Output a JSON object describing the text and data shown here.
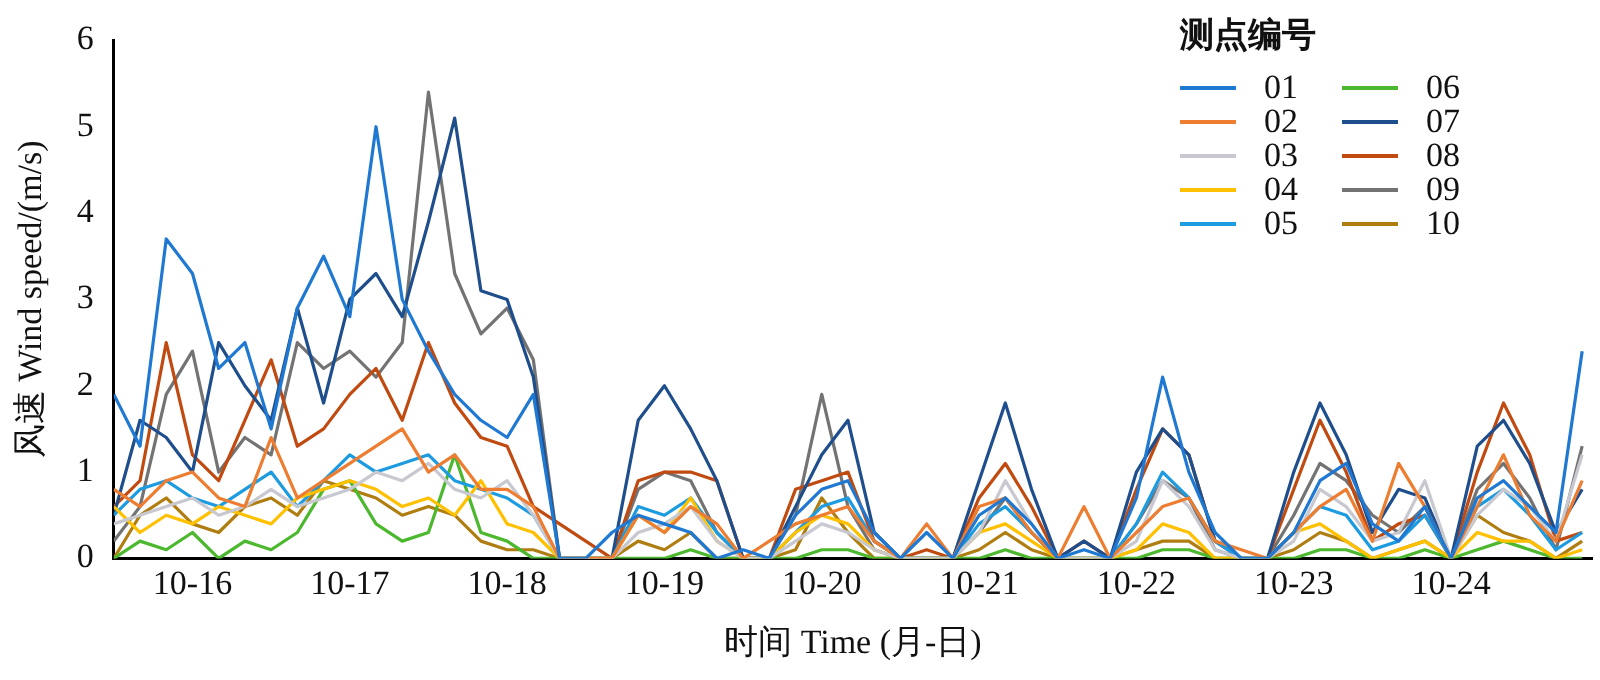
{
  "chart_data": {
    "type": "line",
    "xlabel": "时间 Time (月-日)",
    "ylabel": "风速 Wind speed/(m/s)",
    "legend_title": "测点编号",
    "legend": "top right",
    "marker": "none",
    "xlim": [
      "--10-15T12:00",
      "--10-24T21:30"
    ],
    "xticks": [
      {
        "value": "--10-16",
        "label": "10-16"
      },
      {
        "value": "--10-17",
        "label": "10-17"
      },
      {
        "value": "--10-18",
        "label": "10-18"
      },
      {
        "value": "--10-19",
        "label": "10-19"
      },
      {
        "value": "--10-20",
        "label": "10-20"
      },
      {
        "value": "--10-21",
        "label": "10-21"
      },
      {
        "value": "--10-22",
        "label": "10-22"
      },
      {
        "value": "--10-23",
        "label": "10-23"
      },
      {
        "value": "--10-24",
        "label": "10-24"
      }
    ],
    "ylim": [
      0,
      6
    ],
    "yticks": [
      0,
      1,
      2,
      3,
      4,
      5,
      6
    ],
    "x": [
      "--10-15T12:00",
      "--10-15T16:00",
      "--10-15T20:00",
      "--10-16T00:00",
      "--10-16T04:00",
      "--10-16T08:00",
      "--10-16T12:00",
      "--10-16T16:00",
      "--10-16T20:00",
      "--10-17T00:00",
      "--10-17T04:00",
      "--10-17T08:00",
      "--10-17T12:00",
      "--10-17T16:00",
      "--10-17T20:00",
      "--10-18T00:00",
      "--10-18T04:00",
      "--10-18T08:00",
      "--10-18T12:00",
      "--10-18T16:00",
      "--10-18T20:00",
      "--10-19T00:00",
      "--10-19T04:00",
      "--10-19T08:00",
      "--10-19T12:00",
      "--10-19T16:00",
      "--10-19T20:00",
      "--10-20T00:00",
      "--10-20T04:00",
      "--10-20T08:00",
      "--10-20T12:00",
      "--10-20T16:00",
      "--10-20T20:00",
      "--10-21T00:00",
      "--10-21T04:00",
      "--10-21T08:00",
      "--10-21T12:00",
      "--10-21T16:00",
      "--10-21T20:00",
      "--10-22T00:00",
      "--10-22T04:00",
      "--10-22T08:00",
      "--10-22T12:00",
      "--10-22T16:00",
      "--10-22T20:00",
      "--10-23T00:00",
      "--10-23T04:00",
      "--10-23T08:00",
      "--10-23T12:00",
      "--10-23T16:00",
      "--10-23T20:00",
      "--10-24T00:00",
      "--10-24T04:00",
      "--10-24T08:00",
      "--10-24T12:00",
      "--10-24T16:00",
      "--10-24T20:00"
    ],
    "series": [
      {
        "name": "01",
        "color": "#1f78d1",
        "values": [
          1.9,
          1.3,
          3.7,
          3.3,
          2.2,
          2.5,
          1.5,
          2.9,
          3.5,
          2.8,
          5.0,
          3.0,
          2.4,
          1.9,
          1.6,
          1.4,
          1.9,
          0,
          0,
          0.3,
          0.5,
          0.4,
          0.3,
          0,
          0.1,
          0,
          0.5,
          0.8,
          0.9,
          0.3,
          0,
          0.3,
          0,
          0.5,
          0.7,
          0.4,
          0,
          0.1,
          0,
          0.7,
          2.1,
          1.0,
          0.3,
          0,
          0,
          0.3,
          0.9,
          1.1,
          0.4,
          0.2,
          0.6,
          0,
          0.7,
          0.9,
          0.6,
          0.3,
          2.4
        ]
      },
      {
        "name": "02",
        "color": "#ed7d31",
        "values": [
          0.8,
          0.6,
          0.9,
          1.0,
          0.7,
          0.6,
          1.4,
          0.7,
          0.9,
          1.1,
          1.3,
          1.5,
          1.0,
          1.2,
          0.8,
          0.8,
          0.6,
          0,
          0,
          0,
          0.5,
          0.3,
          0.6,
          0.4,
          0,
          0.2,
          0.4,
          0.5,
          0.6,
          0.2,
          0,
          0.4,
          0,
          0.6,
          0.7,
          0.3,
          0,
          0.6,
          0,
          0.3,
          0.6,
          0.7,
          0.2,
          0.1,
          0,
          0.3,
          0.6,
          0.8,
          0.2,
          1.1,
          0.6,
          0,
          0.6,
          1.2,
          0.5,
          0.2,
          0.9
        ]
      },
      {
        "name": "03",
        "color": "#c8c8d0",
        "values": [
          0.4,
          0.5,
          0.6,
          0.7,
          0.5,
          0.6,
          0.8,
          0.6,
          0.7,
          0.8,
          1.0,
          0.9,
          1.1,
          0.8,
          0.7,
          0.9,
          0.5,
          0,
          0,
          0,
          0.3,
          0.4,
          0.6,
          0.2,
          0,
          0,
          0.2,
          0.4,
          0.3,
          0.1,
          0,
          0,
          0,
          0.3,
          0.9,
          0.4,
          0,
          0,
          0,
          0.2,
          0.9,
          0.6,
          0.1,
          0,
          0,
          0.2,
          0.8,
          0.6,
          0.2,
          0.3,
          0.9,
          0,
          0.5,
          0.8,
          0.6,
          0.2,
          1.2
        ]
      },
      {
        "name": "04",
        "color": "#ffc000",
        "values": [
          0.6,
          0.3,
          0.5,
          0.4,
          0.6,
          0.5,
          0.4,
          0.7,
          0.8,
          0.9,
          0.8,
          0.6,
          0.7,
          0.5,
          0.9,
          0.4,
          0.3,
          0,
          0,
          0,
          0.5,
          0.3,
          0.7,
          0.2,
          0,
          0,
          0.3,
          0.5,
          0.4,
          0.1,
          0,
          0,
          0,
          0.3,
          0.4,
          0.2,
          0,
          0,
          0,
          0.1,
          0.4,
          0.3,
          0,
          0,
          0,
          0.3,
          0.4,
          0.2,
          0,
          0.1,
          0.2,
          0,
          0.3,
          0.2,
          0.2,
          0,
          0.1
        ]
      },
      {
        "name": "05",
        "color": "#1c9be0",
        "values": [
          0.5,
          0.8,
          0.9,
          0.7,
          0.6,
          0.8,
          1.0,
          0.6,
          0.9,
          1.2,
          1.0,
          1.1,
          1.2,
          0.9,
          0.8,
          0.7,
          0.5,
          0,
          0,
          0,
          0.6,
          0.5,
          0.7,
          0.3,
          0,
          0,
          0.3,
          0.6,
          0.7,
          0.2,
          0,
          0,
          0,
          0.4,
          0.6,
          0.3,
          0,
          0,
          0,
          0.4,
          1.0,
          0.7,
          0.2,
          0,
          0,
          0.3,
          0.6,
          0.5,
          0.1,
          0.2,
          0.5,
          0,
          0.6,
          0.8,
          0.5,
          0.1,
          0.3
        ]
      },
      {
        "name": "06",
        "color": "#4cb82e",
        "values": [
          0,
          0.2,
          0.1,
          0.3,
          0,
          0.2,
          0.1,
          0.3,
          0.8,
          0.9,
          0.4,
          0.2,
          0.3,
          1.2,
          0.3,
          0.2,
          0,
          0,
          0,
          0,
          0,
          0,
          0.1,
          0,
          0,
          0,
          0,
          0.1,
          0.1,
          0,
          0,
          0,
          0,
          0,
          0.1,
          0,
          0,
          0,
          0,
          0,
          0.1,
          0.1,
          0,
          0,
          0,
          0,
          0.1,
          0.1,
          0,
          0,
          0.1,
          0,
          0.1,
          0.2,
          0.1,
          0,
          0
        ]
      },
      {
        "name": "07",
        "color": "#1f4e8c",
        "values": [
          0.5,
          1.6,
          1.4,
          1.0,
          2.5,
          2.0,
          1.6,
          2.9,
          1.8,
          3.0,
          3.3,
          2.8,
          3.9,
          5.1,
          3.1,
          3.0,
          2.1,
          0,
          0,
          0,
          1.6,
          2.0,
          1.5,
          0.9,
          0,
          0,
          0.6,
          1.2,
          1.6,
          0.3,
          0,
          0,
          0,
          0.9,
          1.8,
          0.8,
          0,
          0.2,
          0,
          1.0,
          1.5,
          1.2,
          0.2,
          0,
          0,
          1.0,
          1.8,
          1.2,
          0.3,
          0.8,
          0.7,
          0,
          1.3,
          1.6,
          1.1,
          0.3,
          0.8
        ]
      },
      {
        "name": "08",
        "color": "#c04a10",
        "values": [
          0.6,
          0.9,
          2.5,
          1.2,
          0.9,
          1.6,
          2.3,
          1.3,
          1.5,
          1.9,
          2.2,
          1.6,
          2.5,
          1.8,
          1.4,
          1.3,
          0.6,
          0.4,
          0.2,
          0,
          0.9,
          1.0,
          1.0,
          0.9,
          0,
          0,
          0.8,
          0.9,
          1.0,
          0.2,
          0,
          0.1,
          0,
          0.7,
          1.1,
          0.6,
          0,
          0.2,
          0,
          0.8,
          1.5,
          1.2,
          0.2,
          0,
          0,
          0.8,
          1.6,
          1.0,
          0.2,
          0.4,
          0.5,
          0,
          1.0,
          1.8,
          1.2,
          0.2,
          0.3
        ]
      },
      {
        "name": "09",
        "color": "#737373",
        "values": [
          0.2,
          0.6,
          1.9,
          2.4,
          1.0,
          1.4,
          1.2,
          2.5,
          2.2,
          2.4,
          2.1,
          2.5,
          5.4,
          3.3,
          2.6,
          2.9,
          2.3,
          0,
          0,
          0,
          0.8,
          1.0,
          0.9,
          0.3,
          0,
          0,
          0.5,
          1.9,
          0.6,
          0.1,
          0,
          0,
          0,
          0.3,
          0.7,
          0.3,
          0,
          0,
          0,
          0.4,
          0.9,
          0.7,
          0.1,
          0,
          0,
          0.5,
          1.1,
          0.9,
          0.5,
          0.3,
          0.6,
          0,
          0.8,
          1.1,
          0.7,
          0.1,
          1.3
        ]
      },
      {
        "name": "10",
        "color": "#b07d10",
        "values": [
          0,
          0.5,
          0.7,
          0.4,
          0.3,
          0.6,
          0.7,
          0.5,
          0.9,
          0.8,
          0.7,
          0.5,
          0.6,
          0.5,
          0.2,
          0.1,
          0.1,
          0,
          0,
          0,
          0.2,
          0.1,
          0.3,
          0,
          0,
          0,
          0.1,
          0.7,
          0.3,
          0,
          0,
          0,
          0,
          0.1,
          0.3,
          0.1,
          0,
          0,
          0,
          0.1,
          0.2,
          0.2,
          0,
          0,
          0,
          0.1,
          0.3,
          0.2,
          0,
          0.1,
          0.2,
          0,
          0.5,
          0.3,
          0.2,
          0,
          0.2
        ]
      }
    ]
  }
}
